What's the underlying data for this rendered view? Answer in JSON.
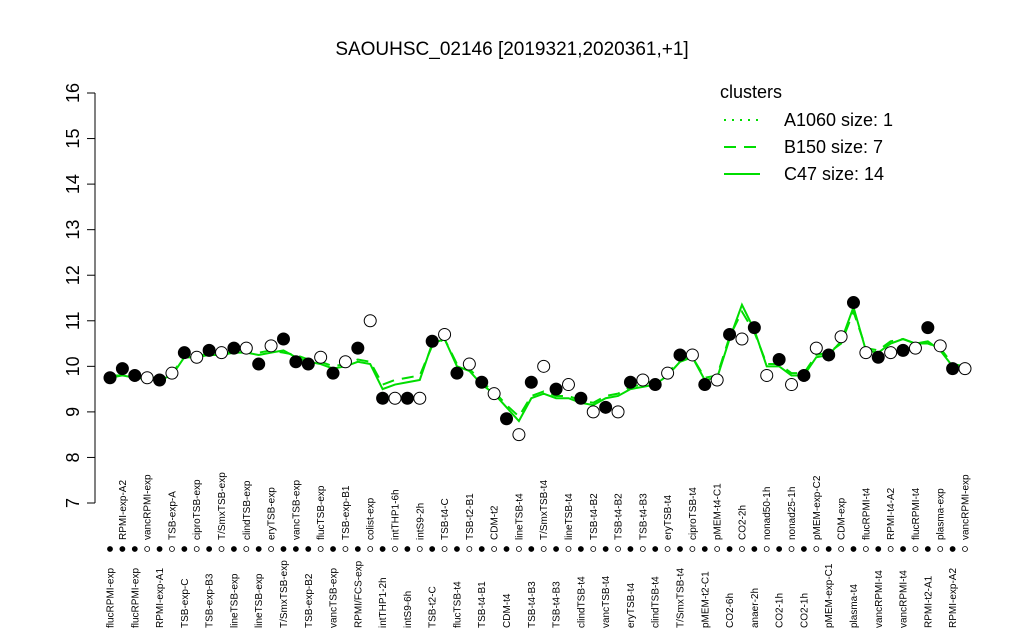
{
  "chart_data": {
    "type": "line",
    "title": "SAOUHSC_02146 [2019321,2020361,+1]",
    "categories": [
      "flucRPMI-exp",
      "RPMI-exp-A2",
      "flucRPMI-exp",
      "vancRPMI-exp",
      "RPMI-exp-A1",
      "TSB-exp-A",
      "TSB-exp-C",
      "ciproTSB-exp",
      "TSB-exp-B3",
      "T/SmxTSB-exp",
      "lineTSB-exp",
      "clindTSB-exp",
      "lineTSB-exp",
      "eryTSB-exp",
      "T/SmxTSB-exp",
      "vancTSB-exp",
      "TSB-exp-B2",
      "flucTSB-exp",
      "vancTSB-exp",
      "TSB-exp-B1",
      "RPMI/FCS-exp",
      "colist-exp",
      "intTHP1-2h",
      "intTHP1-6h",
      "intS9-6h",
      "intS9-2h",
      "TSB-t2-C",
      "TSB-t4-C",
      "flucTSB-t4",
      "TSB-t2-B1",
      "TSB-t4-B1",
      "CDM-t2",
      "CDM-t4",
      "lineTSB-t4",
      "TSB-t4-B3",
      "T/SmxTSB-t4",
      "TSB-t4-B3",
      "lineTSB-t4",
      "clindTSB-t4",
      "TSB-t4-B2",
      "vancTSB-t4",
      "TSB-t4-B2",
      "eryTSB-t4",
      "TSB-t4-B3",
      "clindTSB-t4",
      "eryTSB-t4",
      "T/SmxTSB-t4",
      "ciproTSB-t4",
      "pMEM-t2-C1",
      "pMEM-t4-C1",
      "CO2-6h",
      "CO2-2h",
      "anaer-2h",
      "nonad50-1h",
      "CO2-1h",
      "nonad25-1h",
      "CO2-1h",
      "pMEM-exp-C2",
      "pMEM-exp-C1",
      "CDM-exp",
      "plasma-t4",
      "flucRPMI-t4",
      "vancRPMI-t4",
      "RPMI-t4-A2",
      "vancRPMI-t4",
      "flucRPMI-t4",
      "RPMI-t2-A1",
      "plasma-exp",
      "RPMI-exp-A2",
      "vancRPMI-exp"
    ],
    "values": [
      9.75,
      9.95,
      9.8,
      9.75,
      9.7,
      9.85,
      10.3,
      10.2,
      10.35,
      10.3,
      10.4,
      10.4,
      10.05,
      10.45,
      10.6,
      10.1,
      10.05,
      10.2,
      9.85,
      10.1,
      10.4,
      11.0,
      9.3,
      9.3,
      9.3,
      9.3,
      10.55,
      10.7,
      9.85,
      10.05,
      9.65,
      9.4,
      8.85,
      8.5,
      9.65,
      10.0,
      9.5,
      9.6,
      9.3,
      9.0,
      9.1,
      9.0,
      9.65,
      9.7,
      9.6,
      9.85,
      10.25,
      10.25,
      9.6,
      9.7,
      10.7,
      10.6,
      10.85,
      9.8,
      10.15,
      9.6,
      9.8,
      10.4,
      10.25,
      10.65,
      11.4,
      10.3,
      10.2,
      10.3,
      10.35,
      10.4,
      10.85,
      10.45,
      9.95,
      9.95
    ],
    "filled": [
      true,
      true,
      true,
      false,
      true,
      false,
      true,
      false,
      true,
      false,
      true,
      false,
      true,
      false,
      true,
      true,
      true,
      false,
      true,
      false,
      true,
      false,
      true,
      false,
      true,
      false,
      true,
      false,
      true,
      false,
      true,
      false,
      true,
      false,
      true,
      false,
      true,
      false,
      true,
      false,
      true,
      false,
      true,
      false,
      true,
      false,
      true,
      false,
      true,
      false,
      true,
      false,
      true,
      false,
      true,
      false,
      true,
      false,
      true,
      false,
      true,
      false,
      true,
      false,
      true,
      false,
      true,
      false,
      true,
      false
    ],
    "point_color": "#000000",
    "series": [
      {
        "name": "A1060 size: 1",
        "color": "#00dd00",
        "dash": "dotted"
      },
      {
        "name": "B150 size: 7",
        "color": "#00dd00",
        "dash": "dashed",
        "values": [
          9.8,
          9.8,
          9.75,
          9.75,
          9.75,
          9.85,
          10.2,
          10.2,
          10.3,
          10.3,
          10.3,
          10.35,
          10.3,
          10.35,
          10.3,
          10.25,
          10.15,
          10.1,
          10.0,
          10.05,
          10.15,
          10.1,
          9.6,
          9.7,
          9.75,
          9.8,
          10.45,
          10.6,
          10.05,
          9.95,
          9.65,
          9.45,
          9.15,
          8.9,
          9.35,
          9.45,
          9.35,
          9.35,
          9.25,
          9.2,
          9.35,
          9.4,
          9.55,
          9.6,
          9.7,
          9.85,
          10.15,
          10.2,
          9.75,
          9.8,
          10.65,
          11.2,
          10.75,
          10.05,
          10.05,
          9.85,
          9.85,
          10.25,
          10.3,
          10.5,
          11.2,
          10.4,
          10.35,
          10.55,
          10.6,
          10.5,
          10.5,
          10.4,
          10.05,
          10.0
        ]
      },
      {
        "name": "C47 size: 14",
        "color": "#00dd00",
        "dash": "solid",
        "values": [
          9.75,
          9.8,
          9.75,
          9.72,
          9.7,
          9.8,
          10.2,
          10.2,
          10.25,
          10.25,
          10.3,
          10.3,
          10.25,
          10.3,
          10.35,
          10.2,
          10.1,
          10.05,
          9.95,
          10.0,
          10.1,
          10.05,
          9.5,
          9.6,
          9.65,
          9.7,
          10.5,
          10.6,
          10.0,
          9.9,
          9.6,
          9.4,
          9.1,
          8.8,
          9.3,
          9.4,
          9.3,
          9.3,
          9.2,
          9.15,
          9.3,
          9.35,
          9.5,
          9.55,
          9.6,
          9.8,
          10.1,
          10.2,
          9.7,
          9.75,
          10.6,
          11.35,
          10.8,
          10.0,
          10.0,
          9.8,
          9.8,
          10.2,
          10.25,
          10.55,
          11.3,
          10.35,
          10.3,
          10.5,
          10.6,
          10.5,
          10.55,
          10.35,
          10.0,
          9.95
        ]
      }
    ],
    "legend_title": "clusters",
    "legend": "topright",
    "ylim": [
      7,
      16
    ],
    "yticks": [
      7,
      8,
      9,
      10,
      11,
      12,
      13,
      14,
      15,
      16
    ]
  }
}
